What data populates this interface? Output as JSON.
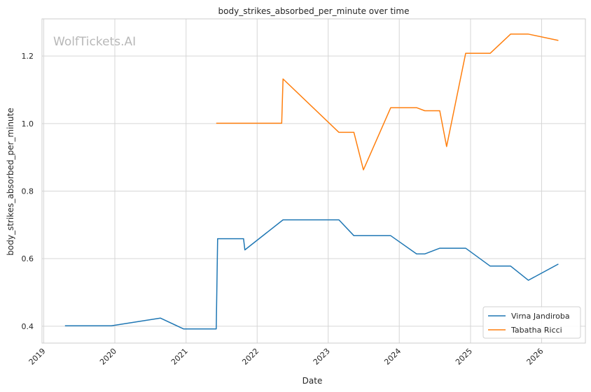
{
  "watermark": "WolfTickets.AI",
  "chart_data": {
    "type": "line",
    "title": "body_strikes_absorbed_per_minute over time",
    "xlabel": "Date",
    "ylabel": "body_strikes_absorbed_per_minute",
    "x_ticks": [
      "2019",
      "2020",
      "2021",
      "2022",
      "2023",
      "2024",
      "2025",
      "2026"
    ],
    "y_ticks": [
      0.4,
      0.6,
      0.8,
      1.0,
      1.2
    ],
    "xlim": [
      "2018-12-23",
      "2026-08-14"
    ],
    "ylim": [
      0.35,
      1.31
    ],
    "grid": true,
    "legend_position": "lower right",
    "series": [
      {
        "name": "Virna Jandiroba",
        "color": "#1f77b4",
        "points": [
          [
            "2019-04-20",
            0.401
          ],
          [
            "2019-12-14",
            0.401
          ],
          [
            "2020-08-22",
            0.424
          ],
          [
            "2020-12-19",
            0.392
          ],
          [
            "2021-06-05",
            0.392
          ],
          [
            "2021-06-12",
            0.659
          ],
          [
            "2021-10-23",
            0.659
          ],
          [
            "2021-10-30",
            0.626
          ],
          [
            "2022-05-14",
            0.715
          ],
          [
            "2023-02-25",
            0.715
          ],
          [
            "2023-05-13",
            0.668
          ],
          [
            "2023-11-18",
            0.668
          ],
          [
            "2024-03-30",
            0.614
          ],
          [
            "2024-05-11",
            0.614
          ],
          [
            "2024-07-27",
            0.631
          ],
          [
            "2024-12-07",
            0.631
          ],
          [
            "2025-04-12",
            0.578
          ],
          [
            "2025-07-26",
            0.578
          ],
          [
            "2025-10-25",
            0.536
          ],
          [
            "2026-03-28",
            0.584
          ]
        ]
      },
      {
        "name": "Tabatha Ricci",
        "color": "#ff7f0e",
        "points": [
          [
            "2021-06-05",
            1.001
          ],
          [
            "2022-05-07",
            1.001
          ],
          [
            "2022-05-14",
            1.132
          ],
          [
            "2023-02-25",
            0.974
          ],
          [
            "2023-05-13",
            0.974
          ],
          [
            "2023-07-01",
            0.863
          ],
          [
            "2023-11-18",
            1.047
          ],
          [
            "2024-03-30",
            1.047
          ],
          [
            "2024-05-11",
            1.038
          ],
          [
            "2024-07-27",
            1.038
          ],
          [
            "2024-08-31",
            0.932
          ],
          [
            "2024-12-07",
            1.208
          ],
          [
            "2025-04-12",
            1.208
          ],
          [
            "2025-07-26",
            1.265
          ],
          [
            "2025-10-25",
            1.265
          ],
          [
            "2026-03-28",
            1.246
          ]
        ]
      }
    ]
  }
}
